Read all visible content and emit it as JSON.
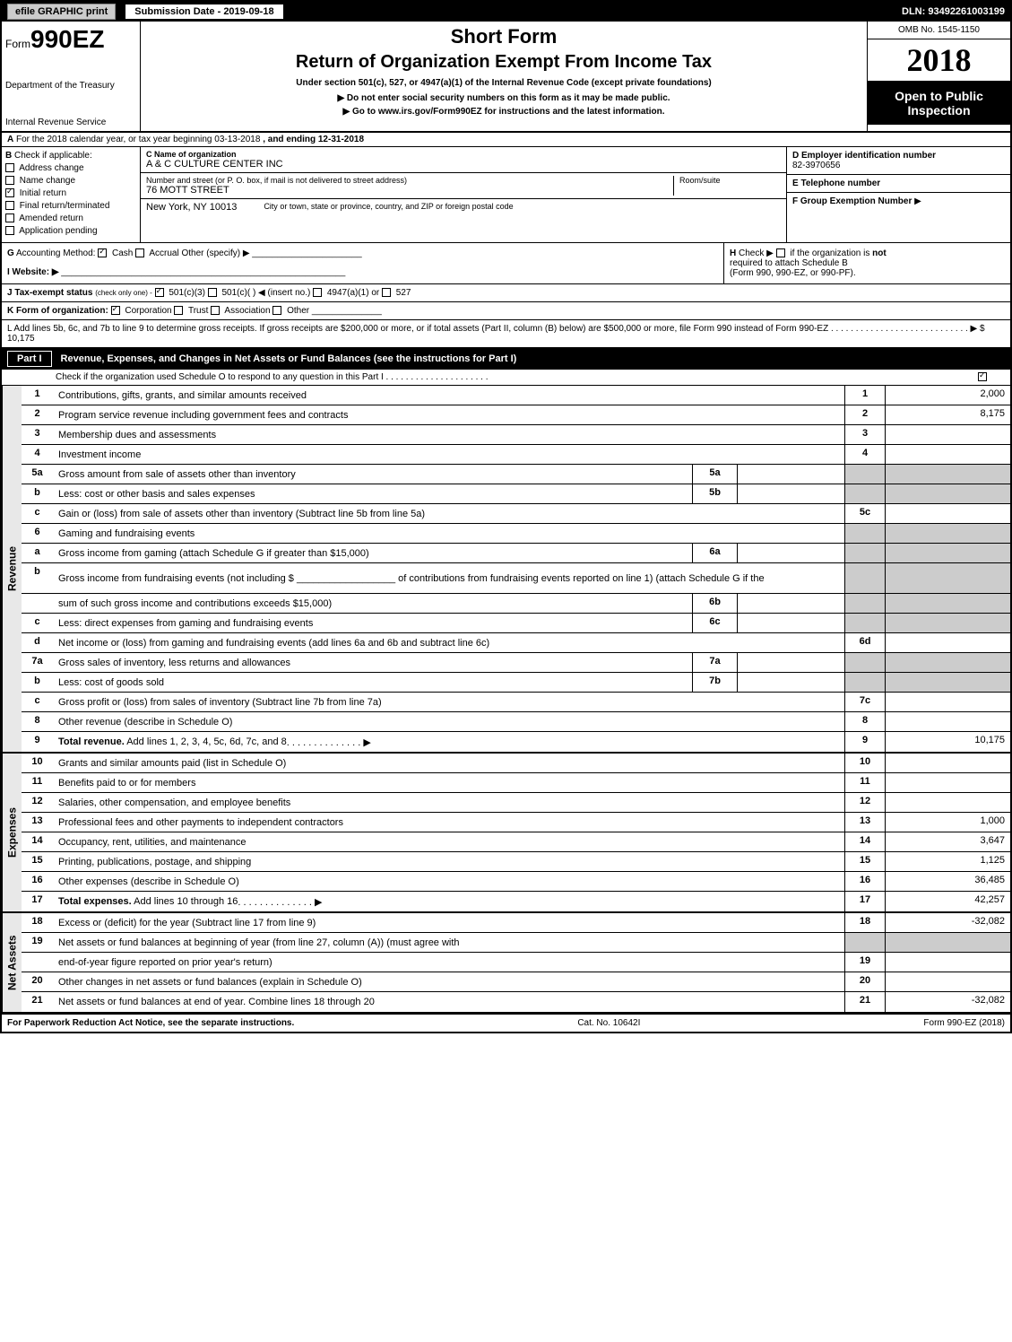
{
  "top_bar": {
    "efile": "efile GRAPHIC print",
    "submission": "Submission Date - 2019-09-18",
    "dln": "DLN: 93492261003199"
  },
  "header": {
    "form_prefix": "Form",
    "form_number": "990EZ",
    "dept1": "Department of the Treasury",
    "dept2": "Internal Revenue Service",
    "short_form": "Short Form",
    "return_title": "Return of Organization Exempt From Income Tax",
    "under_section": "Under section 501(c), 527, or 4947(a)(1) of the Internal Revenue Code (except private foundations)",
    "social_security": "▶ Do not enter social security numbers on this form as it may be made public.",
    "goto": "▶ Go to www.irs.gov/Form990EZ for instructions and the latest information.",
    "omb": "OMB No. 1545-1150",
    "year": "2018",
    "open_public": "Open to Public Inspection"
  },
  "section_a": {
    "prefix": "A",
    "text1": "For the 2018 calendar year, or tax year beginning 03-13-2018",
    "text2": ", and ending 12-31-2018"
  },
  "section_b": {
    "b_label": "B",
    "check_if": "Check if applicable:",
    "items": [
      "Address change",
      "Name change",
      "Initial return",
      "Final return/terminated",
      "Amended return",
      "Application pending"
    ],
    "c_label": "C Name of organization",
    "org_name": "A & C CULTURE CENTER INC",
    "addr_label": "Number and street (or P. O. box, if mail is not delivered to street address)",
    "addr": "76 MOTT STREET",
    "room_label": "Room/suite",
    "city_label": "City or town, state or province, country, and ZIP or foreign postal code",
    "city": "New York, NY  10013",
    "d_label": "D Employer identification number",
    "ein": "82-3970656",
    "e_label": "E Telephone number",
    "f_label": "F Group Exemption Number",
    "f_arrow": "▶"
  },
  "line_g": {
    "g_label": "G",
    "accounting": "Accounting Method:",
    "cash": "Cash",
    "accrual": "Accrual",
    "other": "Other (specify) ▶",
    "h_label": "H",
    "h_check": "Check ▶",
    "h_text1": "if the organization is",
    "h_not": "not",
    "h_text2": "required to attach Schedule B",
    "h_text3": "(Form 990, 990-EZ, or 990-PF)."
  },
  "line_i": {
    "label": "I Website: ▶"
  },
  "line_j": {
    "label": "J Tax-exempt status",
    "note": "(check only one) -",
    "opt1": "501(c)(3)",
    "opt2": "501(c)(  ) ◀ (insert no.)",
    "opt3": "4947(a)(1) or",
    "opt4": "527"
  },
  "line_k": {
    "label": "K Form of organization:",
    "opts": [
      "Corporation",
      "Trust",
      "Association",
      "Other"
    ]
  },
  "line_l": {
    "text": "L Add lines 5b, 6c, and 7b to line 9 to determine gross receipts. If gross receipts are $200,000 or more, or if total assets (Part II, column (B) below) are $500,000 or more, file Form 990 instead of Form 990-EZ",
    "dots": ". . . . . . . . . . . . . . . . . . . . . . . . . . . . ▶",
    "amount": "$ 10,175"
  },
  "part1": {
    "part_label": "Part I",
    "part_desc": "Revenue, Expenses, and Changes in Net Assets or Fund Balances (see the instructions for Part I)",
    "check_o": "Check if the organization used Schedule O to respond to any question in this Part I . . . . . . . . . . . . . . . . . . . . ."
  },
  "sections": {
    "revenue": {
      "label": "Revenue",
      "rows": [
        {
          "num": "1",
          "desc": "Contributions, gifts, grants, and similar amounts received",
          "rn": "1",
          "val": "2,000"
        },
        {
          "num": "2",
          "desc": "Program service revenue including government fees and contracts",
          "rn": "2",
          "val": "8,175"
        },
        {
          "num": "3",
          "desc": "Membership dues and assessments",
          "rn": "3",
          "val": ""
        },
        {
          "num": "4",
          "desc": "Investment income",
          "rn": "4",
          "val": ""
        },
        {
          "num": "5a",
          "desc": "Gross amount from sale of assets other than inventory",
          "sub": "5a",
          "subval": "",
          "shaded_right": true
        },
        {
          "num": "b",
          "desc": "Less: cost or other basis and sales expenses",
          "sub": "5b",
          "subval": "",
          "shaded_right": true
        },
        {
          "num": "c",
          "desc": "Gain or (loss) from sale of assets other than inventory (Subtract line 5b from line 5a)",
          "rn": "5c",
          "val": ""
        },
        {
          "num": "6",
          "desc": "Gaming and fundraising events",
          "shaded_right": true,
          "no_rn": true
        },
        {
          "num": "a",
          "desc": "Gross income from gaming (attach Schedule G if greater than $15,000)",
          "sub": "6a",
          "subval": "",
          "shaded_right": true
        },
        {
          "num": "b",
          "desc": "Gross income from fundraising events (not including $ __________________ of contributions from fundraising events reported on line 1) (attach Schedule G if the",
          "shaded_right": true,
          "no_rn": true,
          "tall": true
        },
        {
          "num": "",
          "desc": "sum of such gross income and contributions exceeds $15,000)",
          "sub": "6b",
          "subval": "",
          "shaded_right": true
        },
        {
          "num": "c",
          "desc": "Less: direct expenses from gaming and fundraising events",
          "sub": "6c",
          "subval": "",
          "shaded_right": true
        },
        {
          "num": "d",
          "desc": "Net income or (loss) from gaming and fundraising events (add lines 6a and 6b and subtract line 6c)",
          "rn": "6d",
          "val": ""
        },
        {
          "num": "7a",
          "desc": "Gross sales of inventory, less returns and allowances",
          "sub": "7a",
          "subval": "",
          "shaded_right": true
        },
        {
          "num": "b",
          "desc": "Less: cost of goods sold",
          "sub": "7b",
          "subval": "",
          "shaded_right": true
        },
        {
          "num": "c",
          "desc": "Gross profit or (loss) from sales of inventory (Subtract line 7b from line 7a)",
          "rn": "7c",
          "val": ""
        },
        {
          "num": "8",
          "desc": "Other revenue (describe in Schedule O)",
          "rn": "8",
          "val": ""
        },
        {
          "num": "9",
          "desc": "Total revenue. Add lines 1, 2, 3, 4, 5c, 6d, 7c, and 8",
          "rn": "9",
          "val": "10,175",
          "bold": true,
          "arrow": true
        }
      ]
    },
    "expenses": {
      "label": "Expenses",
      "rows": [
        {
          "num": "10",
          "desc": "Grants and similar amounts paid (list in Schedule O)",
          "rn": "10",
          "val": ""
        },
        {
          "num": "11",
          "desc": "Benefits paid to or for members",
          "rn": "11",
          "val": ""
        },
        {
          "num": "12",
          "desc": "Salaries, other compensation, and employee benefits",
          "rn": "12",
          "val": ""
        },
        {
          "num": "13",
          "desc": "Professional fees and other payments to independent contractors",
          "rn": "13",
          "val": "1,000"
        },
        {
          "num": "14",
          "desc": "Occupancy, rent, utilities, and maintenance",
          "rn": "14",
          "val": "3,647"
        },
        {
          "num": "15",
          "desc": "Printing, publications, postage, and shipping",
          "rn": "15",
          "val": "1,125"
        },
        {
          "num": "16",
          "desc": "Other expenses (describe in Schedule O)",
          "rn": "16",
          "val": "36,485"
        },
        {
          "num": "17",
          "desc": "Total expenses. Add lines 10 through 16",
          "rn": "17",
          "val": "42,257",
          "bold": true,
          "arrow": true
        }
      ]
    },
    "netassets": {
      "label": "Net Assets",
      "rows": [
        {
          "num": "18",
          "desc": "Excess or (deficit) for the year (Subtract line 17 from line 9)",
          "rn": "18",
          "val": "-32,082"
        },
        {
          "num": "19",
          "desc": "Net assets or fund balances at beginning of year (from line 27, column (A)) (must agree with",
          "shaded_right": true,
          "no_rn": true
        },
        {
          "num": "",
          "desc": "end-of-year figure reported on prior year's return)",
          "rn": "19",
          "val": ""
        },
        {
          "num": "20",
          "desc": "Other changes in net assets or fund balances (explain in Schedule O)",
          "rn": "20",
          "val": ""
        },
        {
          "num": "21",
          "desc": "Net assets or fund balances at end of year. Combine lines 18 through 20",
          "rn": "21",
          "val": "-32,082"
        }
      ]
    }
  },
  "footer": {
    "left": "For Paperwork Reduction Act Notice, see the separate instructions.",
    "center": "Cat. No. 10642I",
    "right": "Form 990-EZ (2018)"
  }
}
